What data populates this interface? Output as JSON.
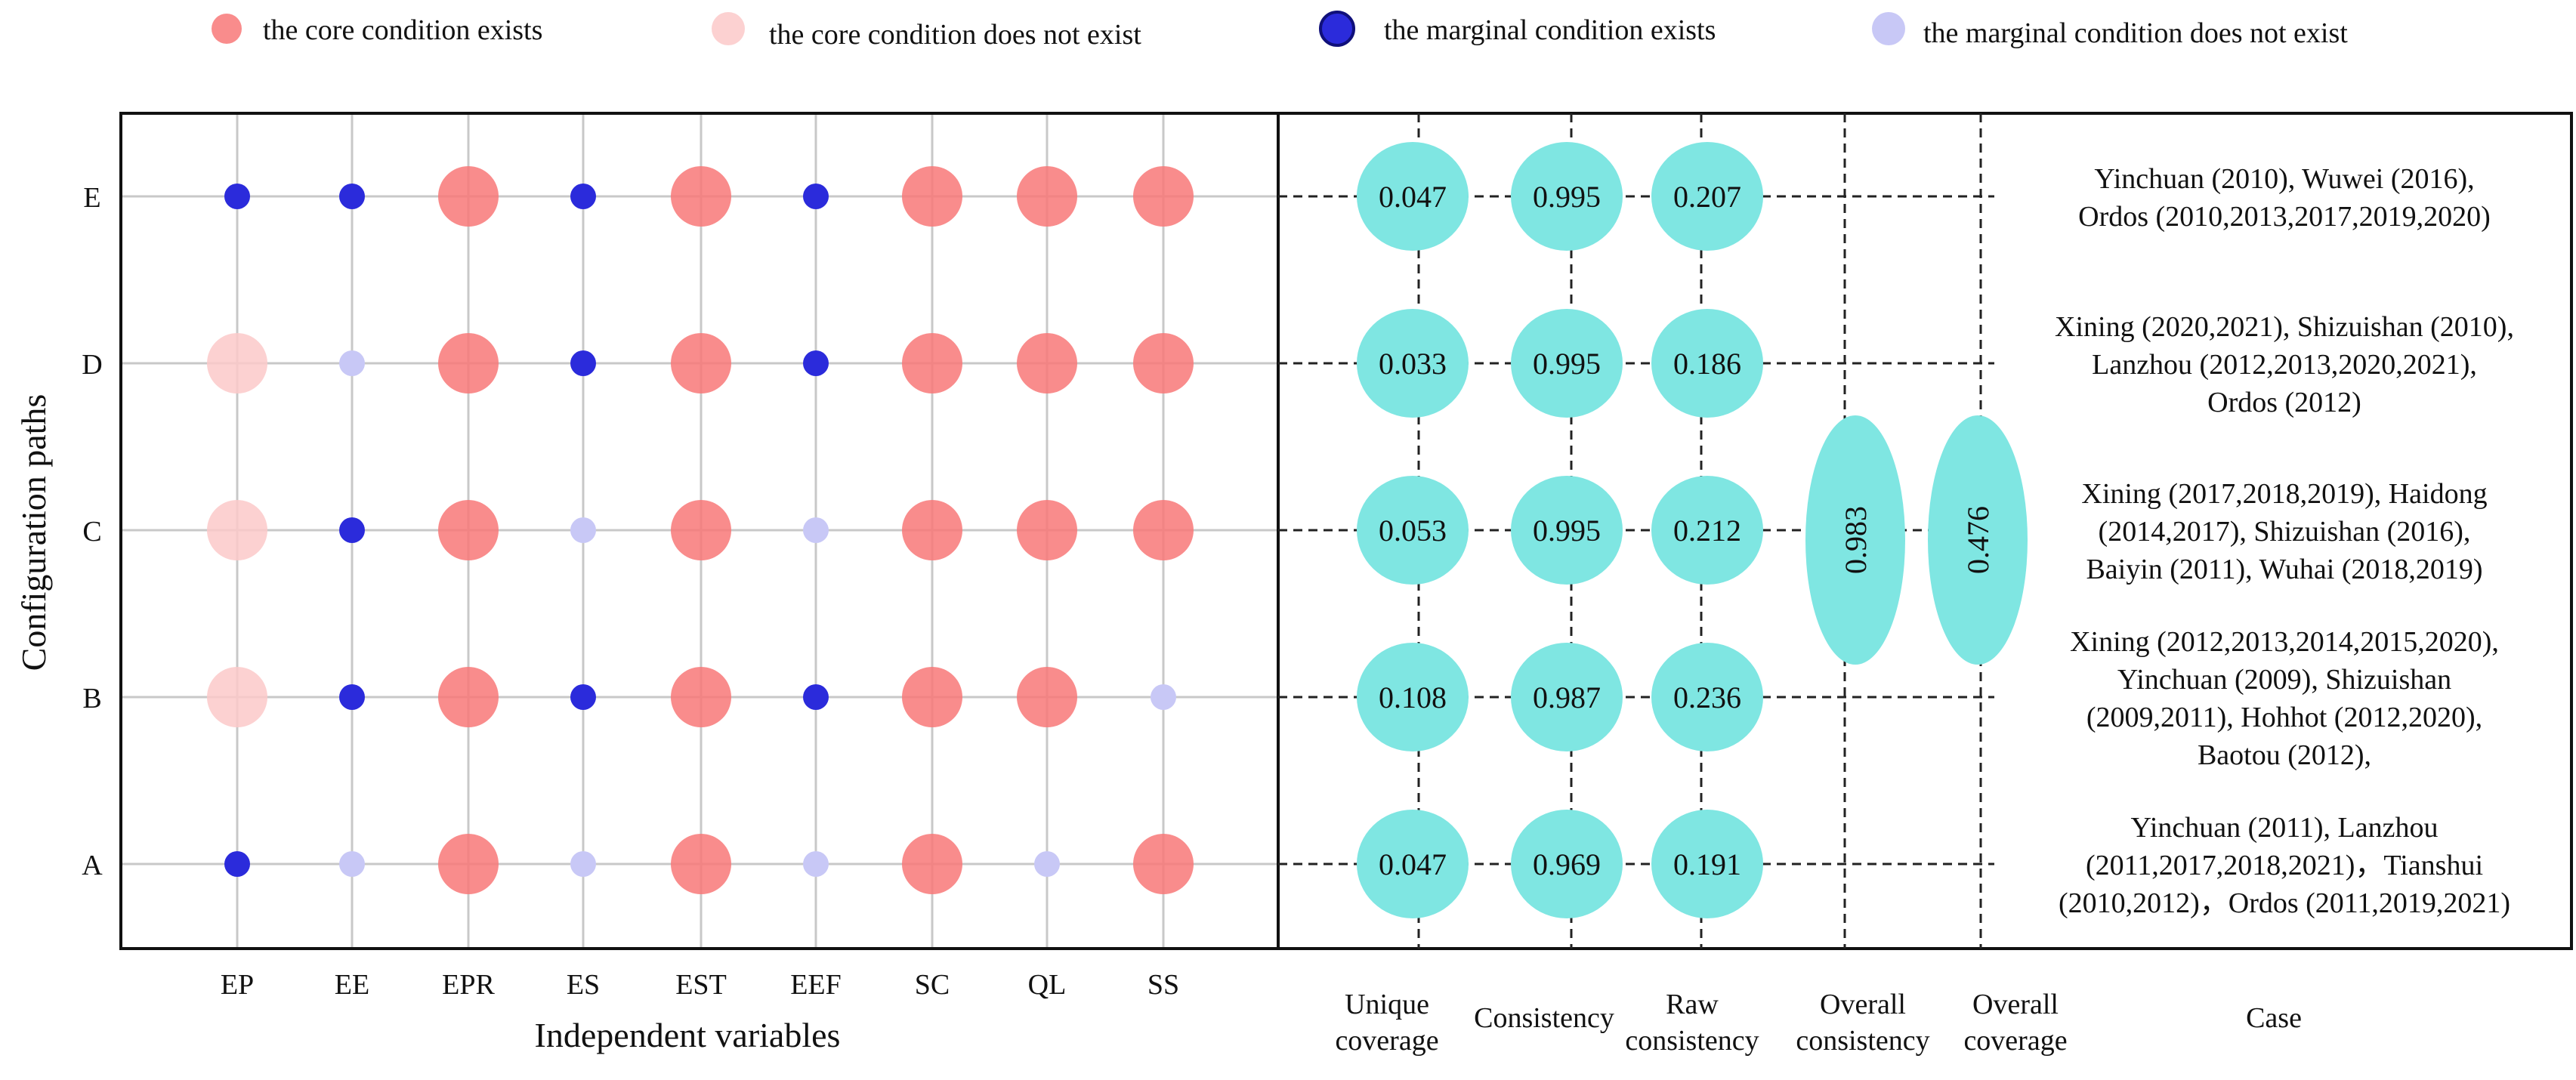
{
  "legend": {
    "items": [
      {
        "label": "the core condition exists",
        "color": "#f87878",
        "opacity": 0.85
      },
      {
        "label": "the core condition does not exist",
        "color": "#fbc9c9",
        "opacity": 0.85
      },
      {
        "label": "the marginal condition exists",
        "color": "#2b2bdb",
        "opacity": 1,
        "stroke": "#10107a"
      },
      {
        "label": "the marginal condition does not exist",
        "color": "#c8c8f6",
        "opacity": 1
      }
    ]
  },
  "chart_data": {
    "type": "scatter",
    "ylabel": "Configuration paths",
    "xlabel": "Independent variables",
    "variables": [
      "EP",
      "EE",
      "EPR",
      "ES",
      "EST",
      "EEF",
      "SC",
      "QL",
      "SS"
    ],
    "paths": [
      "E",
      "D",
      "C",
      "B",
      "A"
    ],
    "conditions": {
      "E": [
        "marginal-exists",
        "marginal-exists",
        "core-exists",
        "marginal-exists",
        "core-exists",
        "marginal-exists",
        "core-exists",
        "core-exists",
        "core-exists"
      ],
      "D": [
        "core-absent",
        "marginal-absent",
        "core-exists",
        "marginal-exists",
        "core-exists",
        "marginal-exists",
        "core-exists",
        "core-exists",
        "core-exists"
      ],
      "C": [
        "core-absent",
        "marginal-exists",
        "core-exists",
        "marginal-absent",
        "core-exists",
        "marginal-absent",
        "core-exists",
        "core-exists",
        "core-exists"
      ],
      "B": [
        "core-absent",
        "marginal-exists",
        "core-exists",
        "marginal-exists",
        "core-exists",
        "marginal-exists",
        "core-exists",
        "core-exists",
        "marginal-absent"
      ],
      "A": [
        "marginal-exists",
        "marginal-absent",
        "core-exists",
        "marginal-absent",
        "core-exists",
        "marginal-absent",
        "core-exists",
        "marginal-absent",
        "core-exists"
      ]
    },
    "metric_columns": [
      "Unique coverage",
      "Consistency",
      "Raw consistency",
      "Overall consistency",
      "Overall coverage",
      "Case"
    ],
    "metrics": {
      "E": {
        "unique_coverage": "0.047",
        "consistency": "0.995",
        "raw_consistency": "0.207"
      },
      "D": {
        "unique_coverage": "0.033",
        "consistency": "0.995",
        "raw_consistency": "0.186"
      },
      "C": {
        "unique_coverage": "0.053",
        "consistency": "0.995",
        "raw_consistency": "0.212"
      },
      "B": {
        "unique_coverage": "0.108",
        "consistency": "0.987",
        "raw_consistency": "0.236"
      },
      "A": {
        "unique_coverage": "0.047",
        "consistency": "0.969",
        "raw_consistency": "0.191"
      }
    },
    "overall_consistency": "0.983",
    "overall_coverage": "0.476",
    "cases": {
      "E": [
        "Yinchuan (2010), Wuwei (2016),",
        "Ordos (2010,2013,2017,2019,2020)"
      ],
      "D": [
        "Xining (2020,2021), Shizuishan (2010),",
        "Lanzhou (2012,2013,2020,2021),",
        "Ordos (2012)"
      ],
      "C": [
        "Xining (2017,2018,2019), Haidong",
        "(2014,2017), Shizuishan (2016),",
        "Baiyin (2011), Wuhai (2018,2019)"
      ],
      "B": [
        "Xining (2012,2013,2014,2015,2020),",
        "Yinchuan (2009), Shizuishan",
        "(2009,2011), Hohhot (2012,2020),",
        "Baotou (2012),"
      ],
      "A": [
        "Yinchuan (2011), Lanzhou",
        "(2011,2017,2018,2021)，Tianshui",
        "(2010,2012)，Ordos (2011,2019,2021)"
      ]
    },
    "colors": {
      "core_exists": "#f87878",
      "core_absent": "#fbc9c9",
      "marginal_exists": "#2b2bdb",
      "marginal_absent": "#c8c8f6",
      "metric_fill": "#7fe6e2",
      "grid": "#c8c8c8"
    }
  }
}
